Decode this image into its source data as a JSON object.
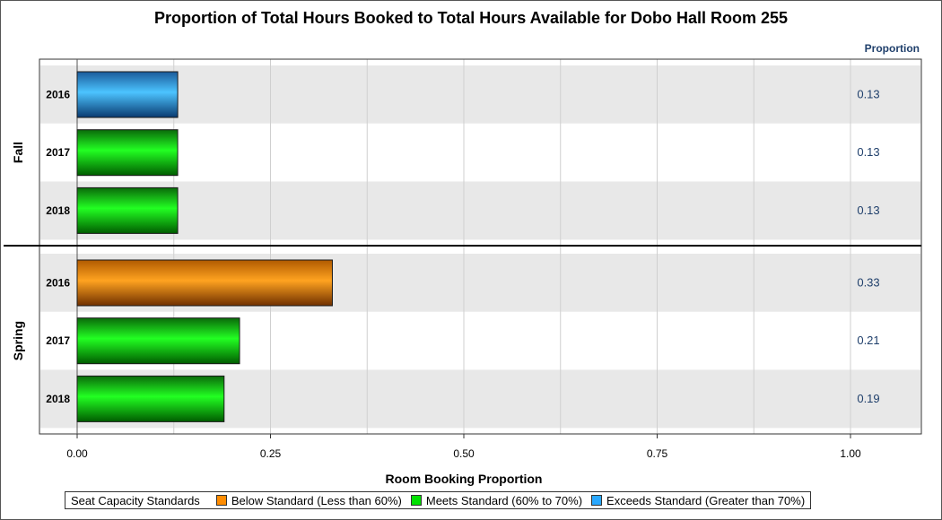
{
  "chart_data": {
    "type": "bar",
    "orientation": "horizontal",
    "title": "Proportion of Total Hours Booked to Total Hours Available for Dobo Hall Room 255",
    "xlabel": "Room Booking Proportion",
    "value_column_header": "Proportion",
    "xlim": [
      0,
      1.0
    ],
    "x_ticks": [
      "0.00",
      "0.25",
      "0.50",
      "0.75",
      "1.00"
    ],
    "grid": true,
    "groups": [
      {
        "label": "Fall",
        "bars": [
          {
            "category": "2016",
            "value": 0.13,
            "value_label": "0.13",
            "standard": "exceeds"
          },
          {
            "category": "2017",
            "value": 0.13,
            "value_label": "0.13",
            "standard": "meets"
          },
          {
            "category": "2018",
            "value": 0.13,
            "value_label": "0.13",
            "standard": "meets"
          }
        ]
      },
      {
        "label": "Spring",
        "bars": [
          {
            "category": "2016",
            "value": 0.33,
            "value_label": "0.33",
            "standard": "below"
          },
          {
            "category": "2017",
            "value": 0.21,
            "value_label": "0.21",
            "standard": "meets"
          },
          {
            "category": "2018",
            "value": 0.19,
            "value_label": "0.19",
            "standard": "meets"
          }
        ]
      }
    ],
    "legend": {
      "placement": "bottom",
      "title": "Seat Capacity Standards",
      "items": [
        {
          "key": "below",
          "label": "Below Standard (Less than 60%)",
          "color": "#ff8c00"
        },
        {
          "key": "meets",
          "label": "Meets Standard (60% to 70%)",
          "color": "#00e000"
        },
        {
          "key": "exceeds",
          "label": "Exceeds Standard (Greater than 70%)",
          "color": "#29a8ff"
        }
      ]
    }
  }
}
